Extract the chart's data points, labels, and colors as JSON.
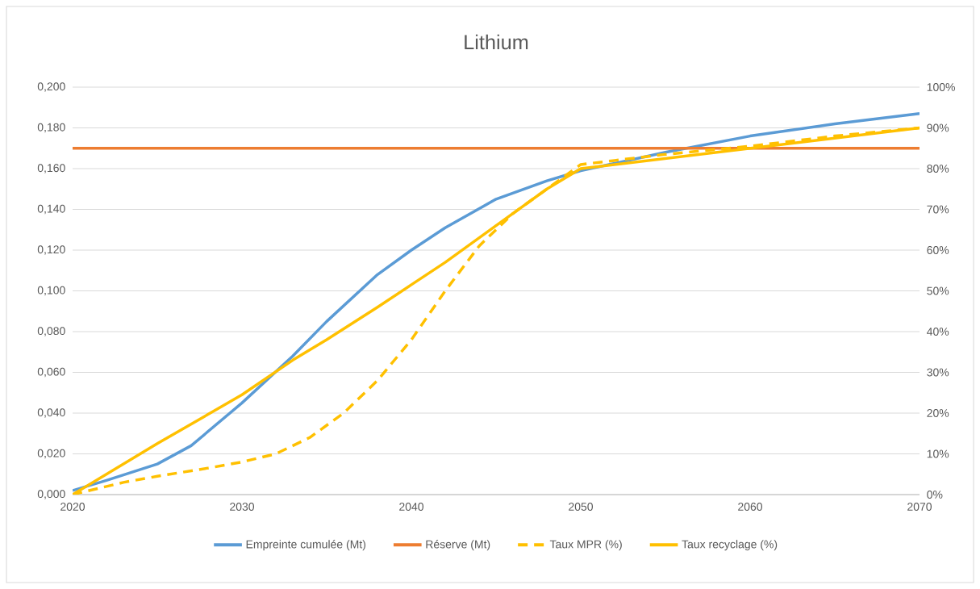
{
  "chart_data": {
    "type": "line",
    "title": "Lithium",
    "xlim": [
      2020,
      2070
    ],
    "xticks": [
      2020,
      2030,
      2040,
      2050,
      2060,
      2070
    ],
    "ylim": [
      0,
      0.2
    ],
    "yticks": [
      {
        "value": 0,
        "label": "0,000"
      },
      {
        "value": 0.02,
        "label": "0,020"
      },
      {
        "value": 0.04,
        "label": "0,040"
      },
      {
        "value": 0.06,
        "label": "0,060"
      },
      {
        "value": 0.08,
        "label": "0,080"
      },
      {
        "value": 0.1,
        "label": "0,100"
      },
      {
        "value": 0.12,
        "label": "0,120"
      },
      {
        "value": 0.14,
        "label": "0,140"
      },
      {
        "value": 0.16,
        "label": "0,160"
      },
      {
        "value": 0.18,
        "label": "0,180"
      },
      {
        "value": 0.2,
        "label": "0,200"
      }
    ],
    "y2lim": [
      0,
      100
    ],
    "y2ticks": [
      {
        "value": 0,
        "label": "0%"
      },
      {
        "value": 10,
        "label": "10%"
      },
      {
        "value": 20,
        "label": "20%"
      },
      {
        "value": 30,
        "label": "30%"
      },
      {
        "value": 40,
        "label": "40%"
      },
      {
        "value": 50,
        "label": "50%"
      },
      {
        "value": 60,
        "label": "60%"
      },
      {
        "value": 70,
        "label": "70%"
      },
      {
        "value": 80,
        "label": "80%"
      },
      {
        "value": 90,
        "label": "90%"
      },
      {
        "value": 100,
        "label": "100%"
      }
    ],
    "grid": "y",
    "legend": "bottom",
    "series": [
      {
        "name": "Empreinte cumulée (Mt)",
        "color": "#5b9bd5",
        "x": [
          2020,
          2022,
          2025,
          2027,
          2030,
          2033,
          2035,
          2038,
          2040,
          2042,
          2045,
          2048,
          2050,
          2055,
          2060,
          2065,
          2070
        ],
        "values": [
          0.002,
          0.007,
          0.015,
          0.024,
          0.045,
          0.068,
          0.085,
          0.108,
          0.12,
          0.131,
          0.145,
          0.154,
          0.159,
          0.168,
          0.176,
          0.182,
          0.187
        ]
      },
      {
        "name": "Réserve (Mt)",
        "color": "#ed7d31",
        "x": [
          2020,
          2070
        ],
        "values": [
          0.17,
          0.17
        ]
      },
      {
        "name": "Taux MPR (%)",
        "color": "#ffc000",
        "axis": "y2",
        "line_style": "dashed",
        "x": [
          2020,
          2023,
          2025,
          2028,
          2030,
          2032,
          2034,
          2036,
          2038,
          2040,
          2042,
          2044,
          2046,
          2048,
          2050,
          2055,
          2060,
          2065,
          2070
        ],
        "values": [
          0,
          3,
          4.5,
          6.5,
          8,
          10,
          14,
          20,
          28,
          38,
          50,
          61,
          69,
          75,
          81,
          83.5,
          85.5,
          88,
          90
        ]
      },
      {
        "name": "Taux recyclage (%)",
        "color": "#ffc000",
        "axis": "y2",
        "x": [
          2020,
          2025,
          2030,
          2033,
          2035,
          2038,
          2040,
          2042,
          2045,
          2048,
          2050,
          2055,
          2060,
          2065,
          2070
        ],
        "values": [
          0,
          12.5,
          24.5,
          33,
          38,
          46,
          51.5,
          57,
          66,
          75,
          80,
          82.5,
          85,
          87.5,
          90
        ]
      }
    ]
  }
}
